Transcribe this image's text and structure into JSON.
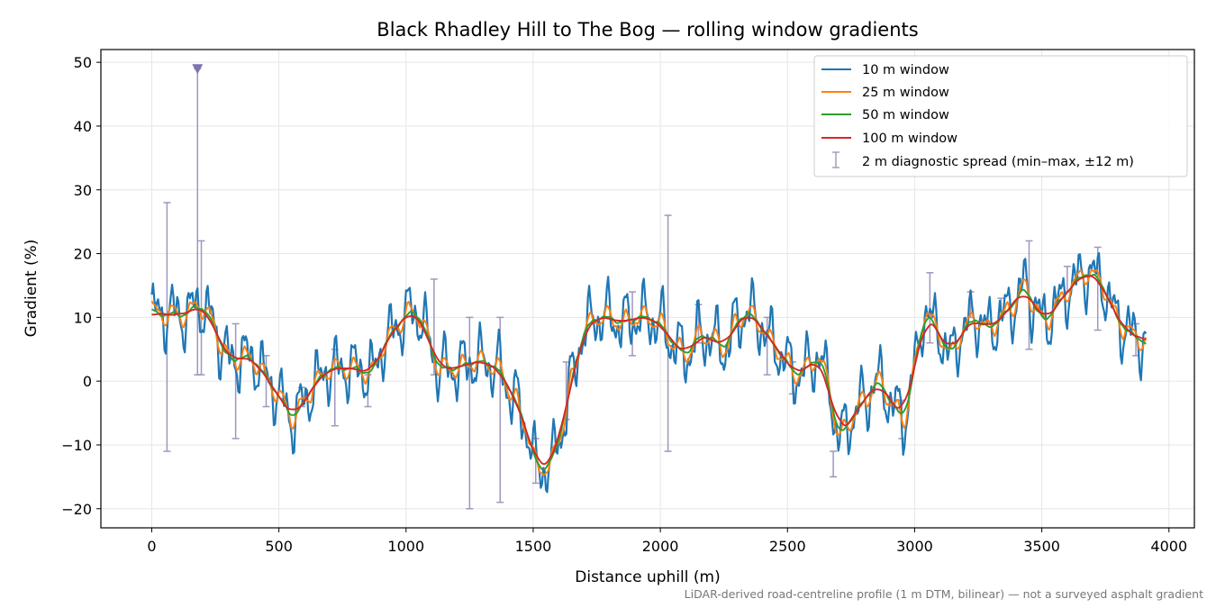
{
  "chart_data": {
    "type": "line",
    "title": "Black Rhadley Hill to The Bog — rolling window gradients",
    "xlabel": "Distance uphill (m)",
    "ylabel": "Gradient (%)",
    "xlim": [
      -200,
      4100
    ],
    "ylim": [
      -23,
      52
    ],
    "xticks": [
      0,
      500,
      1000,
      1500,
      2000,
      2500,
      3000,
      3500,
      4000
    ],
    "yticks": [
      -20,
      -10,
      0,
      10,
      20,
      30,
      40,
      50
    ],
    "xtick_labels": [
      "0",
      "500",
      "1000",
      "1500",
      "2000",
      "2500",
      "3000",
      "3500",
      "4000"
    ],
    "ytick_labels": [
      "−20",
      "−10",
      "0",
      "10",
      "20",
      "30",
      "40",
      "50"
    ],
    "grid": true,
    "legend_position": "top-right",
    "footnote": "LiDAR-derived road-centreline profile (1 m DTM, bilinear) — not a surveyed asphalt gradient",
    "trend_points": [
      [
        0,
        11
      ],
      [
        40,
        10
      ],
      [
        70,
        11
      ],
      [
        110,
        10
      ],
      [
        150,
        11
      ],
      [
        190,
        12
      ],
      [
        230,
        10
      ],
      [
        270,
        6
      ],
      [
        310,
        3
      ],
      [
        360,
        4
      ],
      [
        410,
        3
      ],
      [
        460,
        0
      ],
      [
        510,
        -3
      ],
      [
        560,
        -6
      ],
      [
        600,
        -3
      ],
      [
        650,
        0
      ],
      [
        700,
        2
      ],
      [
        760,
        2
      ],
      [
        810,
        2
      ],
      [
        860,
        1
      ],
      [
        920,
        6
      ],
      [
        970,
        9
      ],
      [
        1020,
        11
      ],
      [
        1060,
        10
      ],
      [
        1090,
        6
      ],
      [
        1130,
        2
      ],
      [
        1200,
        2
      ],
      [
        1260,
        3
      ],
      [
        1310,
        3
      ],
      [
        1360,
        2
      ],
      [
        1420,
        -2
      ],
      [
        1470,
        -7
      ],
      [
        1520,
        -14
      ],
      [
        1570,
        -13
      ],
      [
        1610,
        -8
      ],
      [
        1650,
        0
      ],
      [
        1700,
        8
      ],
      [
        1750,
        10
      ],
      [
        1800,
        10
      ],
      [
        1850,
        9
      ],
      [
        1900,
        10
      ],
      [
        1950,
        10
      ],
      [
        2000,
        9
      ],
      [
        2050,
        6
      ],
      [
        2100,
        4
      ],
      [
        2150,
        7
      ],
      [
        2200,
        7
      ],
      [
        2250,
        5
      ],
      [
        2300,
        9
      ],
      [
        2340,
        11
      ],
      [
        2390,
        9
      ],
      [
        2440,
        6
      ],
      [
        2480,
        4
      ],
      [
        2530,
        1
      ],
      [
        2580,
        2
      ],
      [
        2620,
        4
      ],
      [
        2660,
        0
      ],
      [
        2700,
        -9
      ],
      [
        2750,
        -6
      ],
      [
        2800,
        -3
      ],
      [
        2860,
        0
      ],
      [
        2920,
        -4
      ],
      [
        2960,
        -6
      ],
      [
        3000,
        2
      ],
      [
        3040,
        11
      ],
      [
        3090,
        8
      ],
      [
        3140,
        4
      ],
      [
        3190,
        8
      ],
      [
        3240,
        10
      ],
      [
        3290,
        8
      ],
      [
        3340,
        10
      ],
      [
        3390,
        12
      ],
      [
        3430,
        15
      ],
      [
        3470,
        12
      ],
      [
        3510,
        9
      ],
      [
        3560,
        12
      ],
      [
        3620,
        15
      ],
      [
        3670,
        17
      ],
      [
        3730,
        16
      ],
      [
        3780,
        11
      ],
      [
        3830,
        8
      ],
      [
        3870,
        7
      ],
      [
        3910,
        6
      ]
    ],
    "series": [
      {
        "name": "10 m window",
        "color": "#1f77b4"
      },
      {
        "name": "25 m window",
        "color": "#ff7f0e"
      },
      {
        "name": "50 m window",
        "color": "#2ca02c"
      },
      {
        "name": "100 m window",
        "color": "#d62728"
      }
    ],
    "diagnostic": {
      "name": "2 m diagnostic spread (min–max, ±12 m)",
      "color": "#9e98bd",
      "marker_color": "#7f72ad",
      "bars": [
        [
          60,
          -11,
          28
        ],
        [
          180,
          1,
          49
        ],
        [
          195,
          1,
          22
        ],
        [
          330,
          -9,
          9
        ],
        [
          450,
          -4,
          4
        ],
        [
          590,
          -4,
          -1
        ],
        [
          720,
          -7,
          5
        ],
        [
          850,
          -4,
          1
        ],
        [
          1110,
          1,
          16
        ],
        [
          1250,
          -20,
          10
        ],
        [
          1370,
          -19,
          10
        ],
        [
          1510,
          -16,
          -9
        ],
        [
          1630,
          -6,
          3
        ],
        [
          1890,
          4,
          14
        ],
        [
          2030,
          -11,
          26
        ],
        [
          2150,
          6,
          12
        ],
        [
          2420,
          1,
          10
        ],
        [
          2520,
          -2,
          3
        ],
        [
          2680,
          -15,
          -11
        ],
        [
          2950,
          -9,
          -3
        ],
        [
          3060,
          6,
          17
        ],
        [
          3220,
          10,
          14
        ],
        [
          3340,
          10,
          13
        ],
        [
          3450,
          5,
          22
        ],
        [
          3600,
          14,
          18
        ],
        [
          3720,
          8,
          21
        ],
        [
          3870,
          4,
          9
        ]
      ],
      "clipped_marker": [
        180,
        49
      ]
    }
  }
}
